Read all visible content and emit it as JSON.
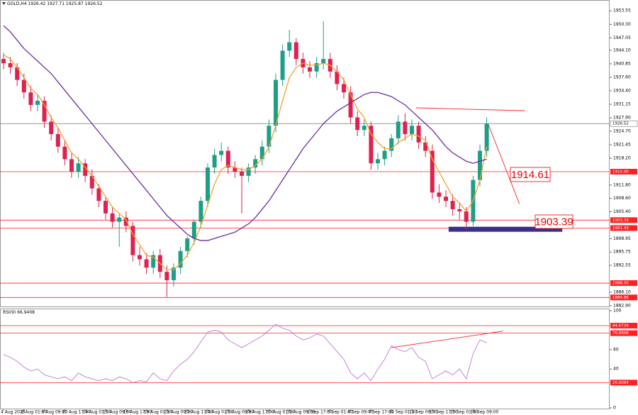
{
  "chart_data": [
    {
      "type": "candlestick",
      "title": "GOLD,H4 1926.42 1927.71 1925.87 1926.52",
      "categories": [
        "4 Aug 2023",
        null,
        null,
        "8 Aug 01:00",
        null,
        null,
        "9 Aug 09:00",
        null,
        null,
        "10 Aug 17:00",
        null,
        null,
        "14 Aug 01:00",
        null,
        null,
        "15 Aug 09:00",
        null,
        null,
        "16 Aug 17:00",
        null,
        null,
        "18 Aug 01:00",
        null,
        null,
        "21 Aug 09:00",
        null,
        null,
        "22 Aug 17:00",
        null,
        null,
        "24 Aug 01:00",
        null,
        null,
        "25 Aug 09:00",
        null,
        null,
        "28 Aug 17:00",
        null,
        null,
        "30 Aug 01:00",
        null,
        null,
        "31 Aug 09:00",
        null,
        null,
        "1 Sep 17:00",
        null,
        null,
        "5 Sep 01:00",
        null,
        null,
        "6 Sep 09:00",
        null,
        null,
        "7 Sep 17:00",
        null,
        null,
        "11 Sep 01:00",
        null,
        null,
        "12 Sep 09:00",
        null,
        null,
        "13 Sep 17:00",
        null,
        null,
        "15 Sep 01:00",
        null,
        null,
        "18 Sep 09:00",
        null,
        null
      ],
      "open": [
        1942,
        1941,
        1940,
        1937,
        1934,
        1931,
        1932,
        1927,
        1924,
        1921,
        1918,
        1915,
        1917,
        1914,
        1911,
        1908,
        1905,
        1903,
        1904,
        1902,
        1895,
        1894,
        1892,
        1895,
        1891,
        1889,
        1892,
        1896,
        1899,
        1903,
        1908,
        1916,
        1919,
        1920,
        1916,
        1915,
        1914,
        1916,
        1918,
        1921,
        1926,
        1937,
        1944,
        1946,
        1942,
        1940,
        1939,
        1941,
        1942,
        1939,
        1936,
        1934,
        1928,
        1925,
        1926,
        1917,
        1918,
        1920,
        1923,
        1927,
        1924,
        1926,
        1922,
        1920,
        1910,
        1909,
        1908,
        1906,
        1905.5,
        1903,
        1913,
        1920
      ],
      "high": [
        1943.5,
        1942.5,
        1941,
        1938.5,
        1935.5,
        1933.5,
        1933,
        1928.5,
        1925.5,
        1922.5,
        1919.5,
        1918.5,
        1918,
        1915.5,
        1912,
        1909,
        1906.5,
        1905,
        1905.5,
        1903,
        1897,
        1895.5,
        1896,
        1896.5,
        1892.5,
        1893,
        1897,
        1899.5,
        1903.5,
        1909,
        1917,
        1920.5,
        1922,
        1921,
        1917.5,
        1916,
        1917,
        1919,
        1922.5,
        1927.5,
        1938.5,
        1945.5,
        1949,
        1947,
        1943.5,
        1941.5,
        1942.5,
        1951,
        1943.5,
        1940.5,
        1937.5,
        1935.5,
        1929.5,
        1927.5,
        1927,
        1919.5,
        1921,
        1924,
        1928.5,
        1929,
        1927.5,
        1927,
        1923.5,
        1921.5,
        1912,
        1910.5,
        1909.5,
        1907.5,
        1906.5,
        1914,
        1921.5,
        1928
      ],
      "low": [
        1939.5,
        1938.5,
        1935.5,
        1932.5,
        1929.5,
        1929.5,
        1925.5,
        1922.5,
        1919.5,
        1916.5,
        1913.5,
        1913.5,
        1912.5,
        1909.5,
        1906.5,
        1903.5,
        1901.5,
        1897,
        1900.5,
        1893.5,
        1892.5,
        1890.5,
        1890.5,
        1889.5,
        1885,
        1887.5,
        1890.5,
        1894.5,
        1897.5,
        1901.5,
        1906.5,
        1914.5,
        1917.5,
        1914.5,
        1913.5,
        1905,
        1912.5,
        1914.5,
        1916.5,
        1919.5,
        1924.5,
        1935.5,
        1942.5,
        1940.5,
        1938.5,
        1937.5,
        1937.5,
        1939.5,
        1937.5,
        1934.5,
        1932.5,
        1926.5,
        1923.5,
        1923.5,
        1915.5,
        1915.5,
        1916.5,
        1918.5,
        1921.5,
        1922.5,
        1922.5,
        1920.5,
        1918.5,
        1908.5,
        1907.5,
        1906.5,
        1904.5,
        1903.5,
        1901,
        1902,
        1911.5,
        1918.5
      ],
      "close": [
        1941,
        1940,
        1937,
        1934,
        1931,
        1932,
        1927,
        1924,
        1921,
        1918,
        1915,
        1917,
        1914,
        1911,
        1908,
        1905,
        1903,
        1904,
        1902,
        1895,
        1894,
        1892,
        1895,
        1891,
        1889,
        1892,
        1896,
        1899,
        1903,
        1908,
        1916,
        1919,
        1920,
        1916,
        1915,
        1914,
        1916,
        1918,
        1921,
        1926,
        1937,
        1944,
        1946,
        1942,
        1940,
        1939,
        1941,
        1942,
        1939,
        1936,
        1934,
        1928,
        1925,
        1926,
        1917,
        1918,
        1920,
        1923,
        1927,
        1924,
        1926,
        1922,
        1920,
        1910,
        1909,
        1908,
        1906,
        1905.5,
        1903,
        1913,
        1920,
        1926.52
      ],
      "up_color": "#1e9e85",
      "down_color": "#e0204e",
      "overlays": [
        {
          "color": "#f5a030",
          "values": [
            1943,
            1942,
            1940,
            1937.5,
            1935,
            1933.5,
            1931,
            1928,
            1925.5,
            1922.5,
            1919.5,
            1918,
            1916,
            1914,
            1911.5,
            1909,
            1906.5,
            1905,
            1903.5,
            1900,
            1897.5,
            1895,
            1894.5,
            1893,
            1891.5,
            1891.5,
            1893,
            1895,
            1898,
            1902,
            1907,
            1912,
            1915.5,
            1916.5,
            1916,
            1915.5,
            1915.5,
            1916.5,
            1918,
            1921,
            1926,
            1932,
            1937.5,
            1940,
            1941,
            1940.5,
            1940.5,
            1941,
            1940.5,
            1939,
            1937,
            1933.5,
            1930,
            1928,
            1924,
            1922,
            1920.5,
            1920.5,
            1922,
            1923,
            1924,
            1923.5,
            1922.5,
            1918,
            1915,
            1912,
            1909,
            1907.5,
            1905.5,
            1908,
            1913,
            1921
          ]
        },
        {
          "color": "#6a2ea0",
          "values": [
            1950,
            1948.5,
            1946.5,
            1944.5,
            1943,
            1941.5,
            1940,
            1938.5,
            1936.5,
            1934.5,
            1932.5,
            1930.5,
            1928.5,
            1926.5,
            1924.5,
            1922.5,
            1920.5,
            1918.5,
            1916.5,
            1914.5,
            1912.5,
            1910.5,
            1908.5,
            1906.5,
            1904.5,
            1903,
            1901.5,
            1900,
            1899,
            1898.5,
            1898.5,
            1899,
            1899.5,
            1900,
            1900.5,
            1901.5,
            1902.5,
            1904,
            1906,
            1908,
            1910.5,
            1913,
            1915.5,
            1918,
            1920.5,
            1922.5,
            1924.5,
            1926.5,
            1928,
            1929.5,
            1930.5,
            1931.5,
            1932.5,
            1933.5,
            1934,
            1934,
            1933.5,
            1933,
            1932,
            1931,
            1929.5,
            1928,
            1926.5,
            1925,
            1923,
            1921,
            1919.5,
            1918.5,
            1917.5,
            1917,
            1917.5,
            1918
          ]
        }
      ],
      "ylim": [
        1882.7,
        1955.8
      ],
      "yticks": [
        1953.55,
        {
          "value": 1950.3,
          "label": "1950.30"
        },
        1947.05,
        {
          "value": 1944.1,
          "label": "1944.10"
        },
        1940.85,
        {
          "value": 1937.6,
          "label": "1937.60"
        },
        {
          "value": 1934.4,
          "label": "1934.40"
        },
        1931.15,
        {
          "value": 1927.9,
          "label": "1927.90"
        },
        {
          "value": 1924.7,
          "label": "1924.70"
        },
        1921.45,
        {
          "value": 1918.2,
          "label": "1918.20"
        },
        {
          "value": 1911.8,
          "label": "1911.80"
        },
        {
          "value": 1908.6,
          "label": "1908.60"
        },
        {
          "value": 1905.4,
          "label": "1905.40"
        },
        1898.95,
        1895.75,
        1892.55,
        {
          "value": 1886.1,
          "label": "1886.10"
        },
        {
          "value": 1882.9,
          "label": "1882.90"
        }
      ],
      "current_price": 1926.52,
      "levels": [
        {
          "value": 1915,
          "label": "1915.00"
        },
        1903.39,
        1901.49,
        {
          "value": 1888.3,
          "label": "1888.30"
        },
        1884.86
      ],
      "level_color": "#ff2020",
      "trendlines": [
        {
          "x": [
            60.6,
            76.6
          ],
          "y": [
            1930.3,
            1929.6
          ]
        },
        {
          "x": [
            71.2,
            75.8
          ],
          "y": [
            1926.5,
            1907.3
          ]
        }
      ],
      "zone": {
        "x": [
          65.4,
          82.1
        ],
        "y": [
          1900.6,
          1901.8
        ],
        "color": "#3a2e8e"
      },
      "annotations": [
        "1914.61",
        "1903.39"
      ]
    },
    {
      "type": "line",
      "title": "RSI(9) 66.9408",
      "color": "#c07ad0",
      "values": [
        55,
        52,
        48,
        42,
        38,
        40,
        34,
        32,
        30,
        32,
        28,
        36,
        32,
        30,
        28,
        30,
        28,
        32,
        30,
        26,
        28,
        27,
        36,
        30,
        28,
        38,
        45,
        50,
        58,
        68,
        78,
        80,
        78,
        70,
        66,
        62,
        66,
        70,
        74,
        80,
        86,
        82,
        80,
        74,
        70,
        72,
        76,
        74,
        66,
        58,
        50,
        36,
        30,
        36,
        28,
        40,
        50,
        64,
        60,
        58,
        62,
        52,
        48,
        30,
        34,
        38,
        34,
        40,
        30,
        56,
        70,
        67
      ],
      "ylim": [
        0,
        100
      ],
      "yticks": [
        100,
        60,
        40,
        0
      ],
      "levels": [
        84.6739,
        76.8908,
        26.0084
      ],
      "level_color": "#ff2020",
      "trendlines": [
        {
          "x": [
            57,
            73.4
          ],
          "y": [
            62,
            79
          ]
        }
      ]
    }
  ]
}
